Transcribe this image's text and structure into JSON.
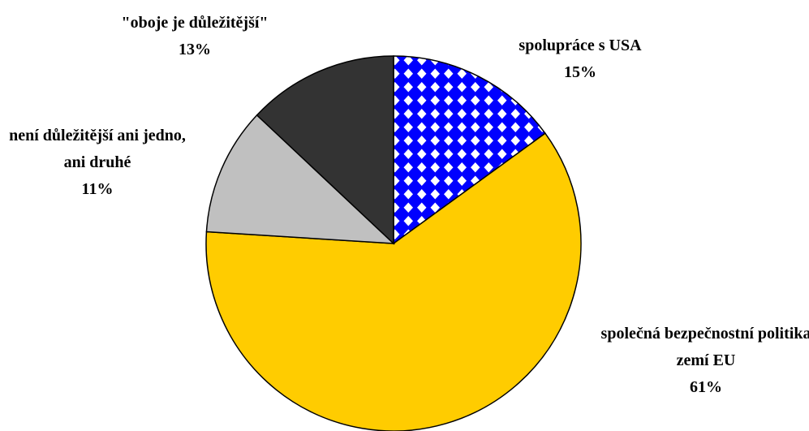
{
  "chart_data": {
    "type": "pie",
    "categories": [
      "spolupráce s USA",
      "společná bezpečnostní politika zemí EU",
      "není důležitější ani jedno, ani druhé",
      "\"oboje je důležitější\""
    ],
    "values": [
      15,
      61,
      11,
      13
    ],
    "value_labels": [
      "15%",
      "61%",
      "11%",
      "13%"
    ],
    "colors": [
      "#0000ff",
      "#ffcc00",
      "#c0c0c0",
      "#333333"
    ],
    "patterns": [
      "diamonds",
      null,
      null,
      null
    ]
  }
}
